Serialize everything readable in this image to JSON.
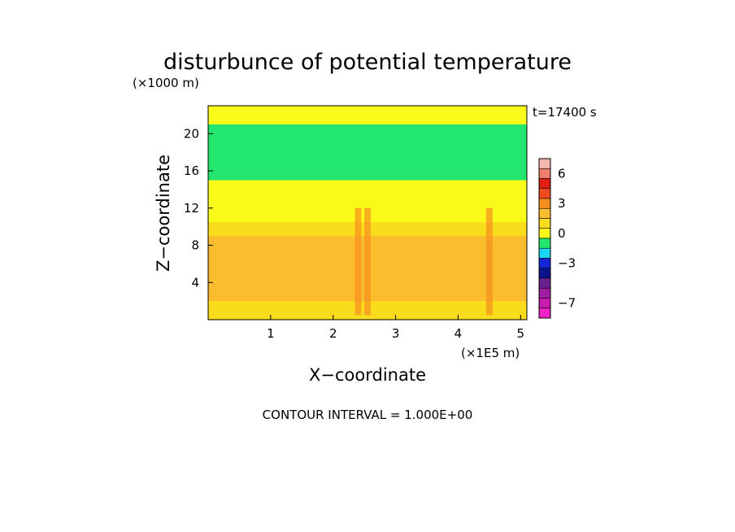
{
  "chart_data": {
    "type": "heatmap",
    "title": "disturbunce of potential temperature",
    "y_unit": "(×1000 m)",
    "x_unit": "(×1E5 m)",
    "xlabel": "X−coordinate",
    "ylabel": "Z−coordinate",
    "time_label": "t=17400 s",
    "contour_interval": "CONTOUR INTERVAL = 1.000E+00",
    "xlim": [
      0,
      5.1
    ],
    "ylim": [
      0,
      23
    ],
    "x_ticks": [
      "1",
      "2",
      "3",
      "4",
      "5"
    ],
    "y_ticks": [
      "4",
      "8",
      "12",
      "16",
      "20"
    ],
    "colorbar": {
      "ticks": [
        "6",
        "3",
        "0",
        "−3",
        "−7"
      ],
      "levels": [
        7,
        6,
        5,
        4,
        3,
        2,
        1,
        0,
        -1,
        -2,
        -3,
        -4,
        -5,
        -6,
        -7,
        -8
      ],
      "colors": [
        "#f4b8b0",
        "#ee7d6c",
        "#dd1e12",
        "#f04a22",
        "#f78e1e",
        "#fbbd2e",
        "#f9dd1c",
        "#fafa1a",
        "#22e66e",
        "#1ad6f0",
        "#1226d4",
        "#0a128c",
        "#6a2090",
        "#a01ca0",
        "#c81cae",
        "#ee22c6"
      ]
    },
    "bands": [
      {
        "z": [
          0,
          2
        ],
        "value": 1
      },
      {
        "z": [
          2,
          9
        ],
        "value": 2
      },
      {
        "z": [
          9,
          10.5
        ],
        "value": 0.5
      },
      {
        "z": [
          10.5,
          15
        ],
        "value": -0.5
      },
      {
        "z": [
          15,
          21
        ],
        "value": -1
      },
      {
        "z": [
          21,
          23
        ],
        "value": -0.5
      }
    ],
    "plumes_x": [
      2.4,
      2.55,
      4.5
    ]
  }
}
